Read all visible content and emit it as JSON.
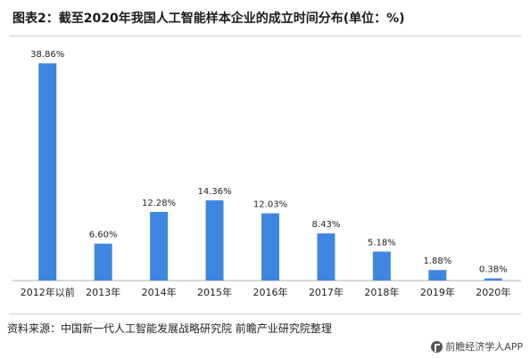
{
  "title": "图表2：截至2020年我国人工智能样本企业的成立时间分布(单位：%)",
  "source": "资料来源：中国新一代人工智能发展战略研究院 前瞻产业研究院整理",
  "brand": "前瞻经济学人APP",
  "colors": {
    "bar": "#3f86e0",
    "axis": "#b0b0b0",
    "text": "#222222"
  },
  "chart_data": {
    "type": "bar",
    "categories": [
      "2012年以前",
      "2013年",
      "2014年",
      "2015年",
      "2016年",
      "2017年",
      "2018年",
      "2019年",
      "2020年"
    ],
    "values": [
      38.86,
      6.6,
      12.28,
      14.36,
      12.03,
      8.43,
      5.18,
      1.88,
      0.38
    ],
    "labels": [
      "38.86%",
      "6.60%",
      "12.28%",
      "14.36%",
      "12.03%",
      "8.43%",
      "5.18%",
      "1.88%",
      "0.38%"
    ],
    "title": "图表2：截至2020年我国人工智能样本企业的成立时间分布(单位：%)",
    "xlabel": "",
    "ylabel": "",
    "ylim": [
      0,
      40
    ],
    "grid": false,
    "legend": "none"
  }
}
